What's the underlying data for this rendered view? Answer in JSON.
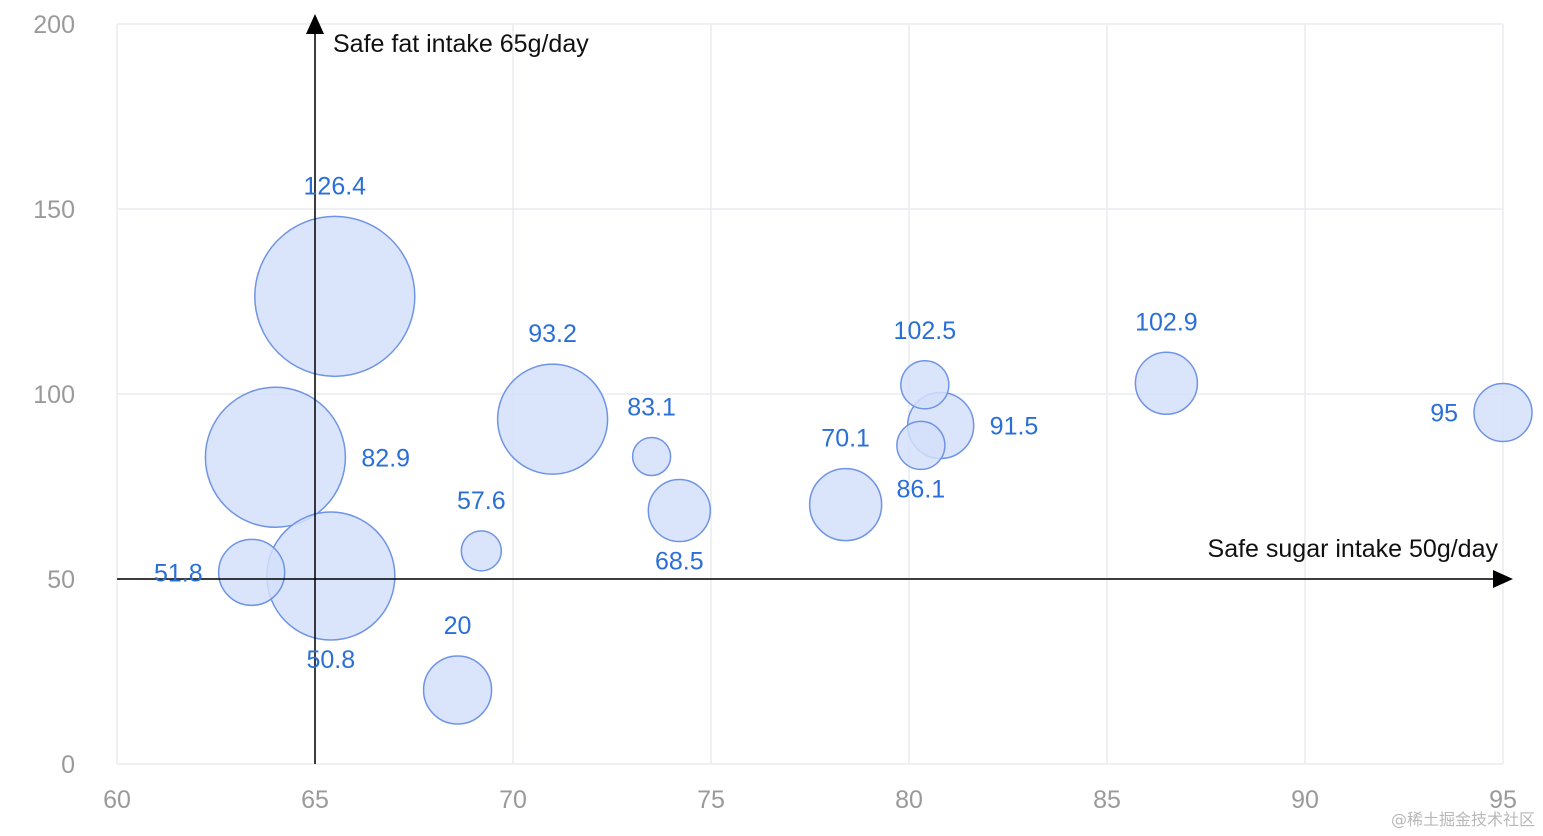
{
  "chart_data": {
    "type": "scatter",
    "variant": "bubble",
    "xlim": [
      60,
      95
    ],
    "ylim": [
      0,
      200
    ],
    "x_ticks": [
      60,
      65,
      70,
      75,
      80,
      85,
      90,
      95
    ],
    "y_ticks": [
      0,
      50,
      100,
      150,
      200
    ],
    "grid": true,
    "colors": {
      "fill": "#d3dffa",
      "stroke": "#6f94e6",
      "label": "#2a6fd8",
      "grid": "#e9ecf1",
      "tick": "#9a9a9a",
      "ref": "#000000"
    },
    "points": [
      {
        "x": 65.5,
        "y": 126.4,
        "size": 80,
        "label": "126.4",
        "label_pos": "top"
      },
      {
        "x": 64.0,
        "y": 82.9,
        "size": 70,
        "label": "82.9",
        "label_pos": "right"
      },
      {
        "x": 65.4,
        "y": 50.8,
        "size": 64,
        "label": "50.8",
        "label_pos": "bottom"
      },
      {
        "x": 63.4,
        "y": 51.8,
        "size": 33,
        "label": "51.8",
        "label_pos": "left"
      },
      {
        "x": 71.0,
        "y": 93.2,
        "size": 55,
        "label": "93.2",
        "label_pos": "top"
      },
      {
        "x": 69.2,
        "y": 57.6,
        "size": 20,
        "label": "57.6",
        "label_pos": "top"
      },
      {
        "x": 68.6,
        "y": 20.0,
        "size": 34,
        "label": "20",
        "label_pos": "top"
      },
      {
        "x": 73.5,
        "y": 83.1,
        "size": 19,
        "label": "83.1",
        "label_pos": "top"
      },
      {
        "x": 74.2,
        "y": 68.5,
        "size": 31,
        "label": "68.5",
        "label_pos": "bottom"
      },
      {
        "x": 78.4,
        "y": 70.1,
        "size": 36,
        "label": "70.1",
        "label_pos": "top"
      },
      {
        "x": 80.4,
        "y": 102.5,
        "size": 24,
        "label": "102.5",
        "label_pos": "top"
      },
      {
        "x": 80.8,
        "y": 91.5,
        "size": 33,
        "label": "91.5",
        "label_pos": "right"
      },
      {
        "x": 80.3,
        "y": 86.1,
        "size": 24,
        "label": "86.1",
        "label_pos": "bottom"
      },
      {
        "x": 86.5,
        "y": 102.9,
        "size": 31,
        "label": "102.9",
        "label_pos": "top"
      },
      {
        "x": 95.0,
        "y": 95.0,
        "size": 29,
        "label": "95",
        "label_pos": "left"
      }
    ],
    "reference_lines": [
      {
        "axis": "x",
        "value": 65,
        "label": "Safe fat intake 65g/day"
      },
      {
        "axis": "y",
        "value": 50,
        "label": "Safe sugar intake 50g/day"
      }
    ]
  },
  "watermark": "@稀土掘金技术社区"
}
